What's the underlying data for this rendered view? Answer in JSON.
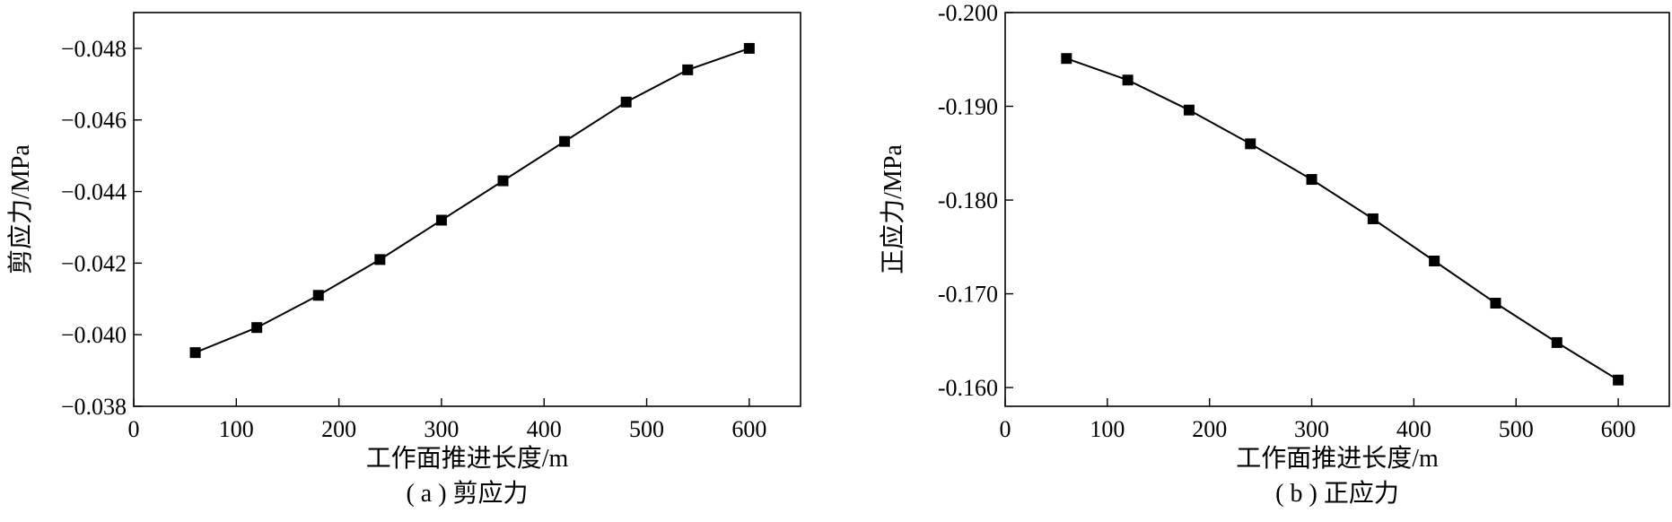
{
  "chart_data": [
    {
      "type": "line",
      "caption": "( a ) 剪应力",
      "xlabel": "工作面推进长度/m",
      "ylabel": "剪应力/MPa",
      "xlim": [
        0,
        650
      ],
      "ylim": [
        -0.038,
        -0.049
      ],
      "x_ticks": [
        0,
        100,
        200,
        300,
        400,
        500,
        600
      ],
      "y_ticks": [
        -0.038,
        -0.04,
        -0.042,
        -0.044,
        -0.046,
        -0.048
      ],
      "y_tick_labels": [
        "−0.038",
        "−0.040",
        "−0.042",
        "−0.044",
        "−0.046",
        "−0.048"
      ],
      "grid": false,
      "marker": "square",
      "series": [
        {
          "x": [
            60,
            120,
            180,
            240,
            300,
            360,
            420,
            480,
            540,
            600
          ],
          "y": [
            -0.0395,
            -0.0402,
            -0.0411,
            -0.0421,
            -0.0432,
            -0.0443,
            -0.0454,
            -0.0465,
            -0.0474,
            -0.048
          ]
        }
      ]
    },
    {
      "type": "line",
      "caption": "( b ) 正应力",
      "xlabel": "工作面推进长度/m",
      "ylabel": "正应力/MPa",
      "xlim": [
        0,
        650
      ],
      "ylim": [
        -0.158,
        -0.2
      ],
      "x_ticks": [
        0,
        100,
        200,
        300,
        400,
        500,
        600
      ],
      "y_ticks": [
        -0.16,
        -0.17,
        -0.18,
        -0.19,
        -0.2
      ],
      "y_tick_labels": [
        "-0.160",
        "-0.170",
        "-0.180",
        "-0.190",
        "-0.200"
      ],
      "grid": false,
      "marker": "square",
      "series": [
        {
          "x": [
            60,
            120,
            180,
            240,
            300,
            360,
            420,
            480,
            540,
            600
          ],
          "y": [
            -0.1951,
            -0.1928,
            -0.1896,
            -0.186,
            -0.1822,
            -0.178,
            -0.1735,
            -0.169,
            -0.1648,
            -0.1608
          ]
        }
      ]
    }
  ]
}
